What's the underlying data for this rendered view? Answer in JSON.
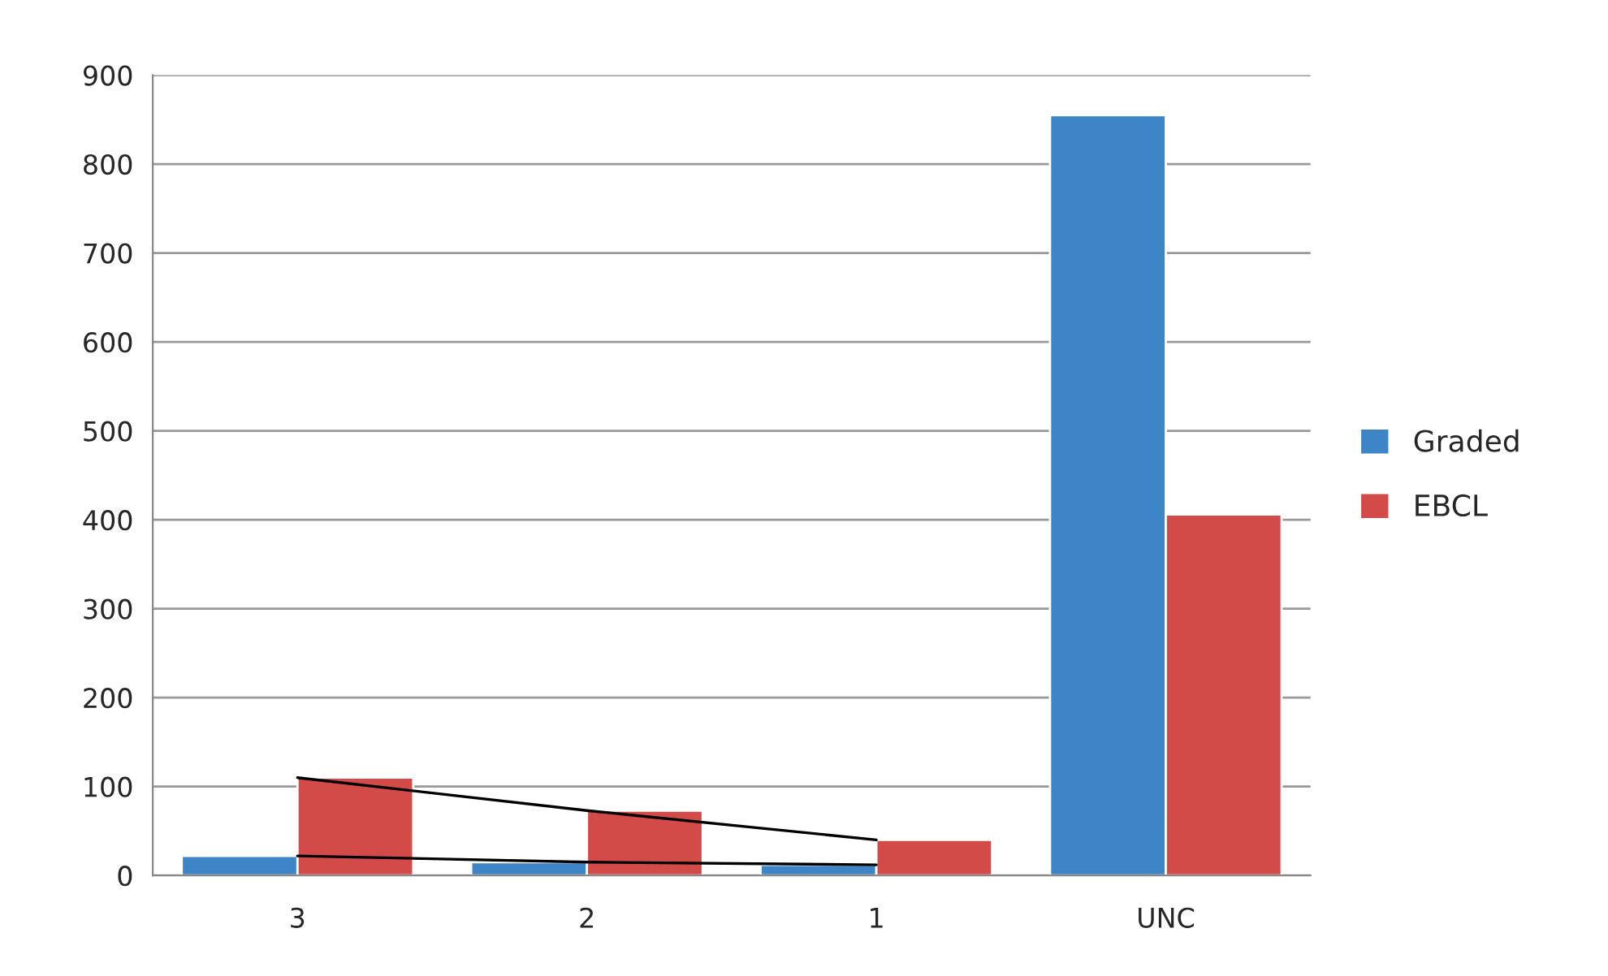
{
  "chart_data": {
    "type": "bar",
    "categories": [
      "3",
      "2",
      "1",
      "UNC"
    ],
    "series": [
      {
        "name": "Graded",
        "color": "#3d85c6",
        "values": [
          22,
          15,
          12,
          855
        ]
      },
      {
        "name": "EBCL",
        "color": "#d34b48",
        "values": [
          110,
          73,
          40,
          406
        ]
      },
      {
        "type": "line",
        "color": "#000000",
        "values": [
          110,
          73,
          40,
          null
        ]
      },
      {
        "type": "line",
        "color": "#000000",
        "values": [
          22,
          15,
          12,
          null
        ]
      }
    ],
    "ylim": [
      0,
      900
    ],
    "yticks": [
      0,
      100,
      200,
      300,
      400,
      500,
      600,
      700,
      800,
      900
    ],
    "grid": "y",
    "legend": "right"
  }
}
